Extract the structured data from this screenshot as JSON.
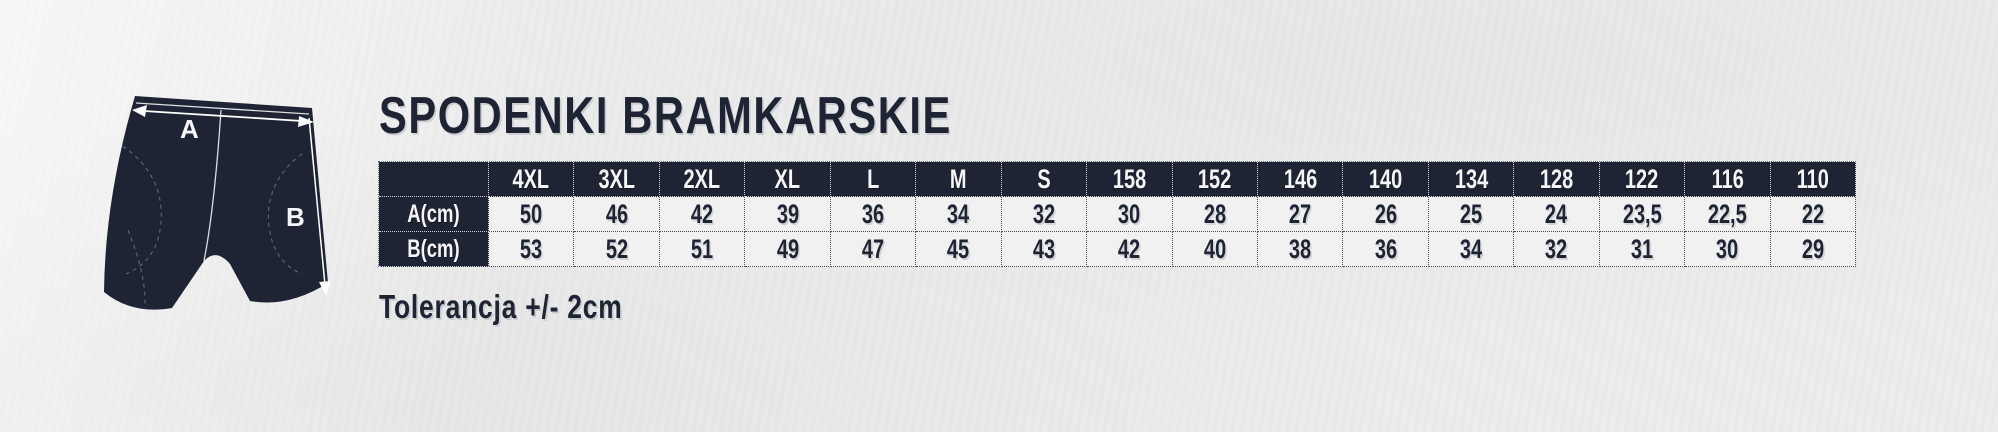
{
  "page": {
    "title": "SPODENKI BRAMKARSKIE",
    "tolerance_note": "Tolerancja +/- 2cm"
  },
  "figure": {
    "description": "goalkeeper shorts front view with measurement arrows",
    "label_a": "A",
    "label_b": "B"
  },
  "colors": {
    "navy": "#1e2434",
    "background": "#ececed",
    "cell_light": "#f1f1f2",
    "text_light": "#f6f6f8"
  },
  "size_table": {
    "corner_label": "",
    "columns": [
      "4XL",
      "3XL",
      "2XL",
      "XL",
      "L",
      "M",
      "S",
      "158",
      "152",
      "146",
      "140",
      "134",
      "128",
      "122",
      "116",
      "110"
    ],
    "rows": [
      {
        "label": "A(cm)",
        "values": [
          "50",
          "46",
          "42",
          "39",
          "36",
          "34",
          "32",
          "30",
          "28",
          "27",
          "26",
          "25",
          "24",
          "23,5",
          "22,5",
          "22"
        ]
      },
      {
        "label": "B(cm)",
        "values": [
          "53",
          "52",
          "51",
          "49",
          "47",
          "45",
          "43",
          "42",
          "40",
          "38",
          "36",
          "34",
          "32",
          "31",
          "30",
          "29"
        ]
      }
    ]
  }
}
